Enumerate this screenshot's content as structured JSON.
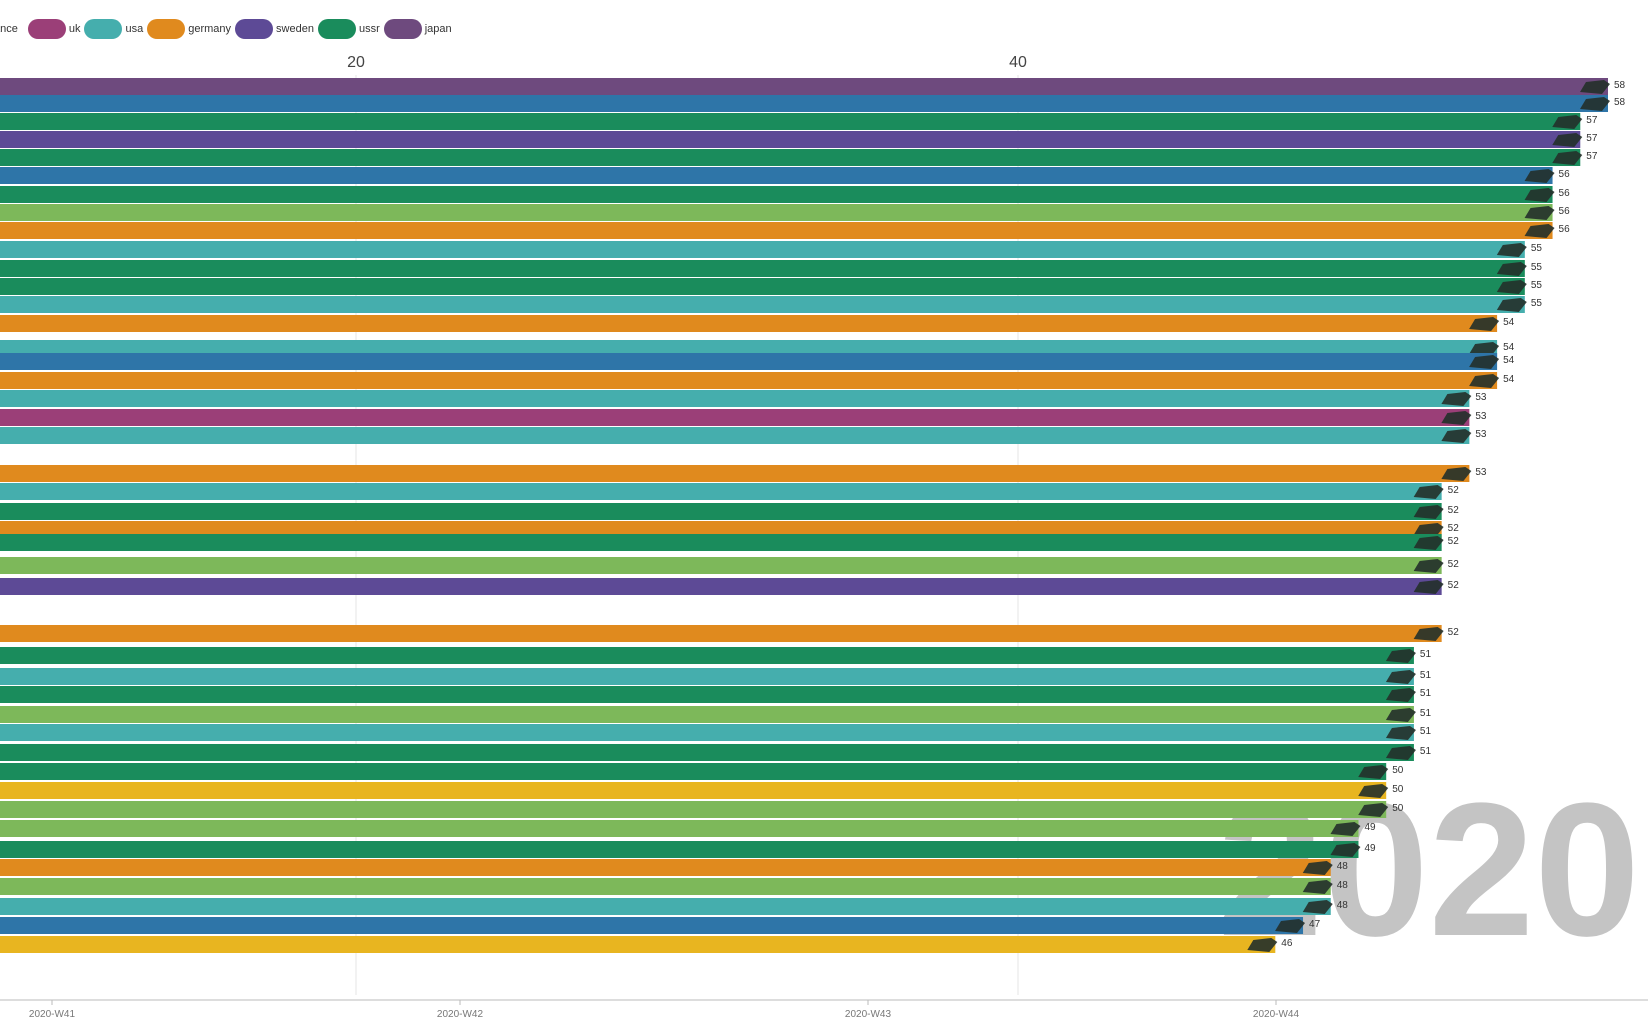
{
  "legend": {
    "first_label_partial": "ance",
    "items": [
      {
        "name": "uk",
        "color": "#9b3f78"
      },
      {
        "name": "usa",
        "color": "#45aead"
      },
      {
        "name": "germany",
        "color": "#e08a1e"
      },
      {
        "name": "sweden",
        "color": "#5d4a96"
      },
      {
        "name": "ussr",
        "color": "#1a8c5c"
      },
      {
        "name": "japan",
        "color": "#6e4a7e"
      }
    ]
  },
  "colors": {
    "uk": "#9b3f78",
    "usa": "#45aead",
    "germany": "#e08a1e",
    "sweden": "#5d4a96",
    "ussr": "#1a8c5c",
    "japan": "#6e4a7e",
    "blue": "#2e75a8",
    "lightgreen": "#7db85a",
    "yellow": "#e8b520",
    "grid": "#e6e6e6",
    "year": "#c4c4c4"
  },
  "year": "2020",
  "chart_data": {
    "type": "bar",
    "orientation": "horizontal",
    "top_axis_ticks": [
      20,
      40
    ],
    "bottom_axis_ticks": [
      "2020-W41",
      "2020-W42",
      "2020-W43",
      "2020-W44"
    ],
    "bars": [
      {
        "value": 58,
        "label": "58",
        "color": "#6e4a7e"
      },
      {
        "value": 58,
        "label": "58",
        "color": "#2e75a8"
      },
      {
        "value": 57,
        "label": "57",
        "color": "#1a8c5c"
      },
      {
        "value": 57,
        "label": "57",
        "color": "#5d4a96"
      },
      {
        "value": 57,
        "label": "57",
        "color": "#1a8c5c"
      },
      {
        "value": 56,
        "label": "56",
        "color": "#2e75a8"
      },
      {
        "value": 56,
        "label": "56",
        "color": "#1a8c5c"
      },
      {
        "value": 56,
        "label": "56",
        "color": "#7db85a"
      },
      {
        "value": 56,
        "label": "56",
        "color": "#e08a1e"
      },
      {
        "value": 55,
        "label": "55",
        "color": "#45aead"
      },
      {
        "value": 55,
        "label": "55",
        "color": "#1a8c5c"
      },
      {
        "value": 55,
        "label": "55",
        "color": "#1a8c5c"
      },
      {
        "value": 55,
        "label": "55",
        "color": "#45aead"
      },
      {
        "value": 54,
        "label": "54",
        "color": "#e08a1e"
      },
      {
        "value": 54,
        "label": "54",
        "color": "#45aead"
      },
      {
        "value": 54,
        "label": "54",
        "color": "#2e75a8"
      },
      {
        "value": 54,
        "label": "54",
        "color": "#e08a1e"
      },
      {
        "value": 53,
        "label": "53",
        "color": "#45aead"
      },
      {
        "value": 53,
        "label": "53",
        "color": "#9b3f78"
      },
      {
        "value": 53,
        "label": "53",
        "color": "#45aead"
      },
      {
        "value": 53,
        "label": "53",
        "color": "#e08a1e"
      },
      {
        "value": 52,
        "label": "52",
        "color": "#45aead"
      },
      {
        "value": 52,
        "label": "52",
        "color": "#1a8c5c"
      },
      {
        "value": 52,
        "label": "52",
        "color": "#e08a1e"
      },
      {
        "value": 52,
        "label": "52",
        "color": "#1a8c5c"
      },
      {
        "value": 52,
        "label": "52",
        "color": "#7db85a"
      },
      {
        "value": 52,
        "label": "52",
        "color": "#5d4a96"
      },
      {
        "value": 52,
        "label": "52",
        "color": "#e08a1e"
      },
      {
        "value": 51,
        "label": "51",
        "color": "#1a8c5c"
      },
      {
        "value": 51,
        "label": "51",
        "color": "#45aead"
      },
      {
        "value": 51,
        "label": "51",
        "color": "#1a8c5c"
      },
      {
        "value": 51,
        "label": "51",
        "color": "#7db85a"
      },
      {
        "value": 51,
        "label": "51",
        "color": "#45aead"
      },
      {
        "value": 51,
        "label": "51",
        "color": "#1a8c5c"
      },
      {
        "value": 50,
        "label": "50",
        "color": "#1a8c5c"
      },
      {
        "value": 50,
        "label": "50",
        "color": "#e8b520"
      },
      {
        "value": 50,
        "label": "50",
        "color": "#7db85a"
      },
      {
        "value": 49,
        "label": "49",
        "color": "#7db85a"
      },
      {
        "value": 49,
        "label": "49",
        "color": "#1a8c5c"
      },
      {
        "value": 48,
        "label": "48",
        "color": "#e08a1e"
      },
      {
        "value": 48,
        "label": "48",
        "color": "#7db85a"
      },
      {
        "value": 48,
        "label": "48",
        "color": "#45aead"
      },
      {
        "value": 47,
        "label": "47",
        "color": "#2e75a8"
      },
      {
        "value": 46,
        "label": "46",
        "color": "#e8b520"
      }
    ]
  }
}
